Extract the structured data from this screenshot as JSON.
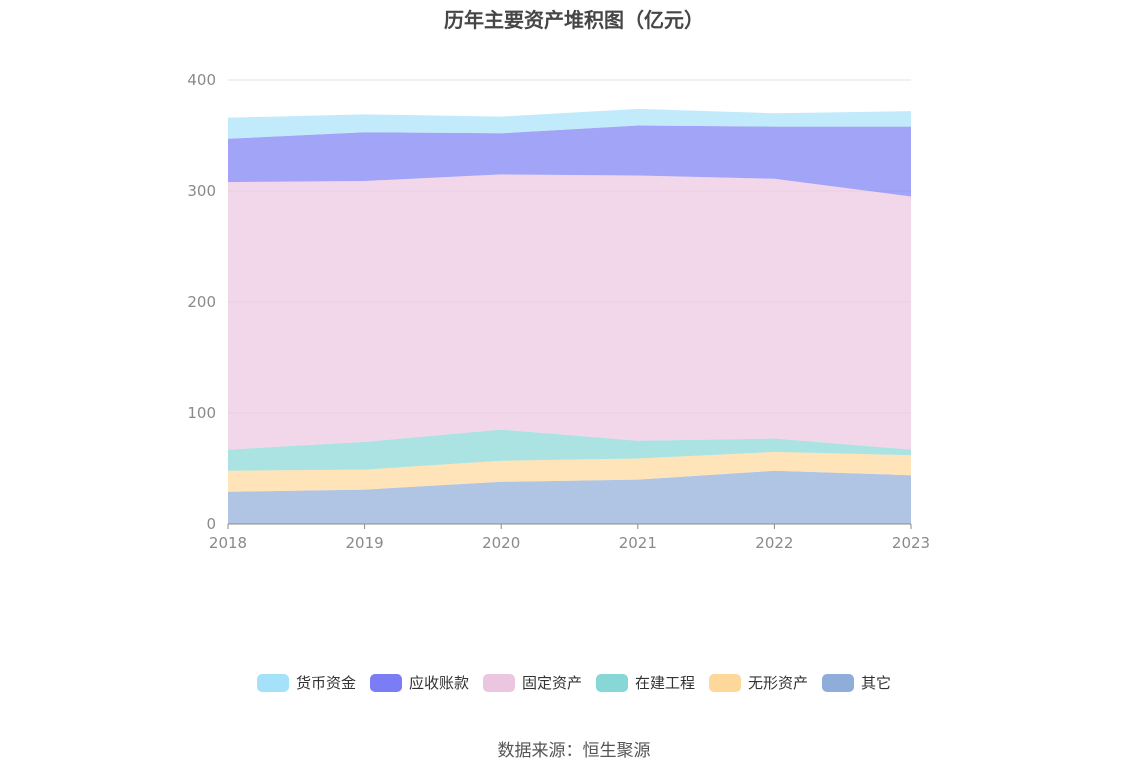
{
  "chart_data": {
    "type": "area",
    "stacked": true,
    "title": "历年主要资产堆积图（亿元）",
    "x": [
      "2018",
      "2019",
      "2020",
      "2021",
      "2022",
      "2023"
    ],
    "ylim": [
      0,
      400
    ],
    "yticks": [
      0,
      100,
      200,
      300,
      400
    ],
    "grid": true,
    "legend_position": "bottom",
    "series": [
      {
        "name": "其它",
        "color": "#8eadd9",
        "values": [
          29,
          31,
          38,
          40,
          48,
          44
        ]
      },
      {
        "name": "无形资产",
        "color": "#fdd89a",
        "values": [
          19,
          18,
          19,
          19,
          17,
          18
        ]
      },
      {
        "name": "在建工程",
        "color": "#86d7d6",
        "values": [
          19,
          25,
          28,
          16,
          12,
          5
        ]
      },
      {
        "name": "固定资产",
        "color": "#ebc6e0",
        "values": [
          241,
          235,
          230,
          239,
          234,
          228
        ]
      },
      {
        "name": "应收账款",
        "color": "#7b7df4",
        "values": [
          39,
          44,
          37,
          45,
          47,
          63
        ]
      },
      {
        "name": "货币资金",
        "color": "#a6e1fa",
        "values": [
          19,
          16,
          15,
          15,
          12,
          14
        ]
      }
    ]
  },
  "legend_order": [
    "货币资金",
    "应收账款",
    "固定资产",
    "在建工程",
    "无形资产",
    "其它"
  ],
  "source": "数据来源：恒生聚源"
}
